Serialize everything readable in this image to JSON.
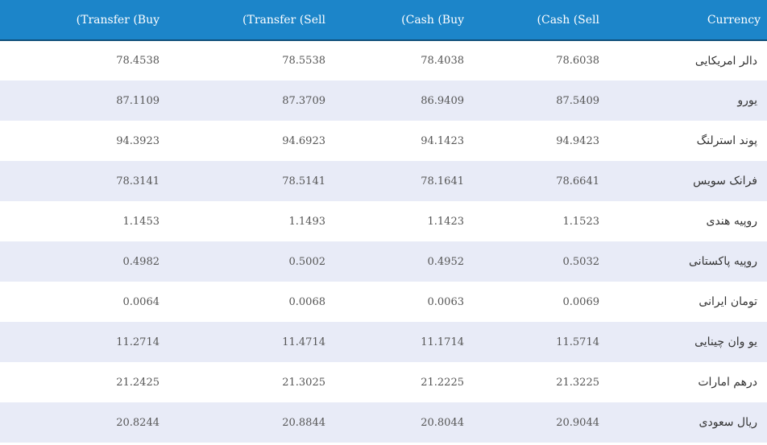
{
  "table": {
    "headers": {
      "transfer_buy": "(Transfer (Buy",
      "transfer_sell": "(Transfer (Sell",
      "cash_buy": "(Cash (Buy",
      "cash_sell": "(Cash (Sell",
      "currency": "Currency"
    },
    "rows": [
      {
        "transfer_buy": "78.4538",
        "transfer_sell": "78.5538",
        "cash_buy": "78.4038",
        "cash_sell": "78.6038",
        "currency": "دالر امریکایی"
      },
      {
        "transfer_buy": "87.1109",
        "transfer_sell": "87.3709",
        "cash_buy": "86.9409",
        "cash_sell": "87.5409",
        "currency": "یورو"
      },
      {
        "transfer_buy": "94.3923",
        "transfer_sell": "94.6923",
        "cash_buy": "94.1423",
        "cash_sell": "94.9423",
        "currency": "پوند استرلنگ"
      },
      {
        "transfer_buy": "78.3141",
        "transfer_sell": "78.5141",
        "cash_buy": "78.1641",
        "cash_sell": "78.6641",
        "currency": "فرانک سویس"
      },
      {
        "transfer_buy": "1.1453",
        "transfer_sell": "1.1493",
        "cash_buy": "1.1423",
        "cash_sell": "1.1523",
        "currency": "روپیه هندی"
      },
      {
        "transfer_buy": "0.4982",
        "transfer_sell": "0.5002",
        "cash_buy": "0.4952",
        "cash_sell": "0.5032",
        "currency": "روپیه پاکستانی"
      },
      {
        "transfer_buy": "0.0064",
        "transfer_sell": "0.0068",
        "cash_buy": "0.0063",
        "cash_sell": "0.0069",
        "currency": "تومان ایرانی"
      },
      {
        "transfer_buy": "11.2714",
        "transfer_sell": "11.4714",
        "cash_buy": "11.1714",
        "cash_sell": "11.5714",
        "currency": "یو وان چینایی"
      },
      {
        "transfer_buy": "21.2425",
        "transfer_sell": "21.3025",
        "cash_buy": "21.2225",
        "cash_sell": "21.3225",
        "currency": "درهم امارات"
      },
      {
        "transfer_buy": "20.8244",
        "transfer_sell": "20.8844",
        "cash_buy": "20.8044",
        "cash_sell": "20.9044",
        "currency": "ریال سعودی"
      }
    ]
  },
  "colors": {
    "header_bg": "#1c85c9",
    "row_alt_bg": "#e8ebf7"
  }
}
